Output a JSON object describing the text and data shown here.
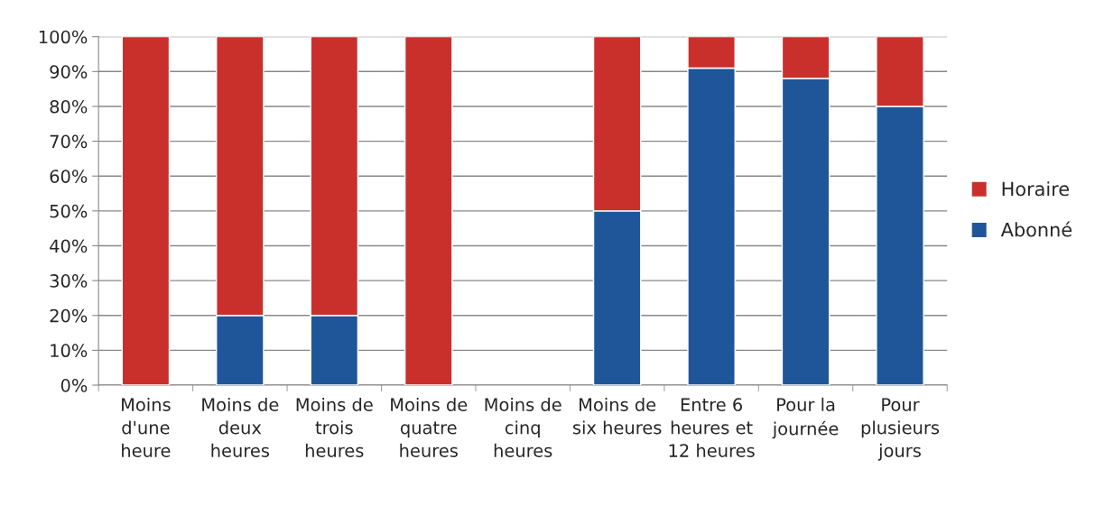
{
  "chart_data": {
    "type": "bar",
    "stacked": true,
    "categories": [
      "Moins d'une heure",
      "Moins de deux heures",
      "Moins de trois heures",
      "Moins de quatre heures",
      "Moins de cinq heures",
      "Moins de six heures",
      "Entre 6 heures et 12 heures",
      "Pour la journée",
      "Pour plusieurs jours"
    ],
    "series": [
      {
        "name": "Abonné",
        "color": "#1f5699",
        "values": [
          0,
          20,
          20,
          0,
          null,
          50,
          91,
          88,
          80
        ]
      },
      {
        "name": "Horaire",
        "color": "#c9302c",
        "values": [
          100,
          80,
          80,
          100,
          null,
          50,
          9,
          12,
          20
        ]
      }
    ],
    "ylim": [
      0,
      100
    ],
    "yticks": [
      {
        "value": 0,
        "label": "0%"
      },
      {
        "value": 10,
        "label": "10%"
      },
      {
        "value": 20,
        "label": "20%"
      },
      {
        "value": 30,
        "label": "30%"
      },
      {
        "value": 40,
        "label": "40%"
      },
      {
        "value": 50,
        "label": "50%"
      },
      {
        "value": 60,
        "label": "60%"
      },
      {
        "value": 70,
        "label": "70%"
      },
      {
        "value": 80,
        "label": "80%"
      },
      {
        "value": 90,
        "label": "90%"
      },
      {
        "value": 100,
        "label": "100%"
      }
    ],
    "grid": "y",
    "legend": "right"
  }
}
